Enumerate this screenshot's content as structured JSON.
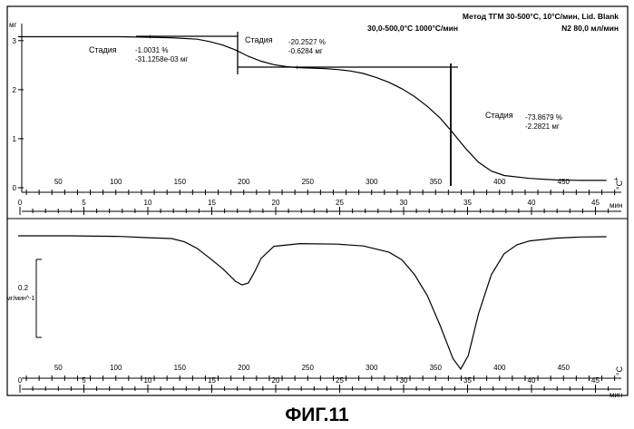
{
  "header": {
    "line1": "Метод ТГМ 30-500°С, 10°С/мин,  Lid. Blank",
    "line2a": "30,0-500,0°С 1000°С/мин",
    "line2b": "N2 80,0 мл/мин"
  },
  "caption": "ФИГ.11",
  "chart_data": [
    {
      "type": "line",
      "name": "TGA",
      "ylabel": "мг",
      "xlabel": "мин",
      "temp_unit": "°С",
      "ylim": [
        0,
        3.25
      ],
      "yticks": [
        0,
        1,
        2,
        3
      ],
      "xlim": [
        0,
        46.5
      ],
      "time_ticks": [
        0,
        5,
        10,
        15,
        20,
        25,
        30,
        35,
        40,
        45
      ],
      "temp_ticks": [
        {
          "label": "50",
          "t": 3.0
        },
        {
          "label": "100",
          "t": 7.5
        },
        {
          "label": "150",
          "t": 12.5
        },
        {
          "label": "200",
          "t": 17.5
        },
        {
          "label": "250",
          "t": 22.5
        },
        {
          "label": "300",
          "t": 27.5
        },
        {
          "label": "350",
          "t": 32.5
        },
        {
          "label": "400",
          "t": 37.5
        },
        {
          "label": "450",
          "t": 42.5
        }
      ],
      "series": [
        {
          "x": [
            0,
            3,
            6,
            8,
            10,
            12,
            14,
            15,
            16,
            17,
            18,
            19,
            20,
            21,
            22,
            23,
            24,
            25,
            26,
            27,
            28,
            29,
            30,
            31,
            32,
            33,
            34,
            35,
            36,
            37,
            38,
            40,
            42,
            44,
            46
          ],
          "y": [
            3.08,
            3.08,
            3.08,
            3.08,
            3.07,
            3.06,
            3.03,
            2.98,
            2.91,
            2.81,
            2.68,
            2.58,
            2.51,
            2.47,
            2.45,
            2.44,
            2.43,
            2.41,
            2.38,
            2.33,
            2.25,
            2.15,
            2.02,
            1.86,
            1.66,
            1.42,
            1.12,
            0.8,
            0.52,
            0.34,
            0.25,
            0.19,
            0.16,
            0.15,
            0.15
          ]
        }
      ],
      "annotations": [
        {
          "label": "Стадия",
          "pct": "-1.0031 %",
          "mass": "-31.1258e-03 мг"
        },
        {
          "label": "Стадия",
          "pct": "-20.2527 %",
          "mass": "-0.6284 мг"
        },
        {
          "label": "Стадия",
          "pct": "-73.8679 %",
          "mass": "-2.2821 мг"
        }
      ]
    },
    {
      "type": "line",
      "name": "DTG",
      "ylabel": "мг/мин^-1",
      "scale_label": "0.2",
      "xlabel": "мин",
      "temp_unit": "°С",
      "ylim": [
        -0.48,
        0.03
      ],
      "xlim": [
        0,
        46.5
      ],
      "series": [
        {
          "x": [
            0,
            4,
            8,
            10,
            12,
            13,
            14,
            15,
            16,
            17,
            17.5,
            18,
            18.5,
            19,
            20,
            22,
            25,
            27,
            29,
            30,
            31,
            32,
            33,
            34,
            34.6,
            35.2,
            36,
            37,
            38,
            39,
            40,
            42,
            44,
            46
          ],
          "y": [
            0,
            0,
            -0.002,
            -0.006,
            -0.009,
            -0.02,
            -0.042,
            -0.075,
            -0.11,
            -0.152,
            -0.164,
            -0.158,
            -0.12,
            -0.075,
            -0.035,
            -0.026,
            -0.028,
            -0.034,
            -0.055,
            -0.08,
            -0.13,
            -0.2,
            -0.3,
            -0.41,
            -0.445,
            -0.4,
            -0.26,
            -0.13,
            -0.06,
            -0.03,
            -0.017,
            -0.008,
            -0.004,
            -0.003
          ]
        }
      ]
    }
  ]
}
